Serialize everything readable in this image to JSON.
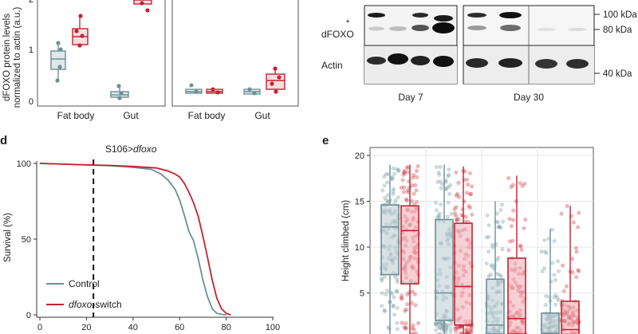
{
  "panel_a": {
    "ylabel_line1": "dFOXO protein levels",
    "ylabel_line2": "normalized to actin (a.u.)",
    "yticks": [
      "0",
      "1",
      "2"
    ],
    "left_groups": [
      "Fat body",
      "Gut"
    ],
    "right_groups": [
      "Fat body",
      "Gut"
    ]
  },
  "panel_blot": {
    "row_labels": [
      "*",
      "dFOXO",
      "Actin"
    ],
    "markers": [
      "100 kDa",
      "80 kDa",
      "40 kDa"
    ],
    "days": [
      "Day 7",
      "Day 30"
    ]
  },
  "panel_d": {
    "letter": "d",
    "title_prefix": "S106>",
    "title_gene": "dfoxo",
    "legend_control": "Control",
    "legend_switch_italic": "dfoxo",
    "legend_switch_suffix": "-switch"
  },
  "panel_e": {
    "letter": "e"
  },
  "colors": {
    "control": "#6b8f96",
    "switch": "#c8202f",
    "control_fill": "#b9cbcf",
    "switch_fill": "#eeaab0"
  },
  "chart_data": [
    {
      "type": "line",
      "xlabel": "",
      "ylabel": "Survival (%)",
      "xlim": [
        0,
        100
      ],
      "ylim": [
        0,
        100
      ],
      "xticks": [
        "0",
        "20",
        "40",
        "60",
        "80",
        "100"
      ],
      "yticks": [
        "0",
        "50",
        "100"
      ],
      "vline_x": 23,
      "series": [
        {
          "name": "Control",
          "x": [
            0,
            10,
            20,
            30,
            40,
            48,
            52,
            55,
            58,
            60,
            62,
            64,
            66,
            68,
            70,
            72,
            74,
            76,
            78,
            80
          ],
          "y": [
            100,
            99.5,
            99,
            98.5,
            97.5,
            96,
            93,
            89,
            83,
            76,
            66,
            55,
            49,
            37,
            23,
            12,
            4,
            1,
            0.3,
            0
          ]
        },
        {
          "name": "dfoxo-switch",
          "x": [
            0,
            10,
            20,
            30,
            40,
            50,
            55,
            58,
            60,
            62,
            64,
            66,
            68,
            70,
            72,
            74,
            76,
            78,
            80,
            82
          ],
          "y": [
            100,
            99.5,
            99,
            98.7,
            98,
            97,
            95,
            93,
            91,
            87,
            81,
            74,
            65,
            52,
            38,
            23,
            11,
            4,
            1,
            0
          ]
        }
      ]
    },
    {
      "type": "box",
      "ylabel": "Height climbed (cm)",
      "ylim": [
        0,
        20
      ],
      "yticks": [
        "5",
        "10",
        "15",
        "20"
      ],
      "series": [
        {
          "name": "Control",
          "groups": [
            {
              "q1": 7.0,
              "median": 12.2,
              "q3": 14.6,
              "whisker_high": 19.0
            },
            {
              "q1": 2.0,
              "median": 5.0,
              "q3": 13.0,
              "whisker_high": 19.0
            },
            {
              "q1": 0.5,
              "median": 1.5,
              "q3": 6.5,
              "whisker_high": 15.0
            },
            {
              "q1": 0.2,
              "median": 0.6,
              "q3": 2.8,
              "whisker_high": 12.0
            }
          ]
        },
        {
          "name": "dfoxo-switch",
          "groups": [
            {
              "q1": 6.0,
              "median": 11.8,
              "q3": 14.5,
              "whisker_high": 19.0
            },
            {
              "q1": 1.5,
              "median": 5.7,
              "q3": 12.6,
              "whisker_high": 18.8
            },
            {
              "q1": 0.5,
              "median": 2.2,
              "q3": 8.8,
              "whisker_high": 17.8
            },
            {
              "q1": 0.3,
              "median": 1.0,
              "q3": 4.1,
              "whisker_high": 14.5
            }
          ]
        }
      ]
    }
  ]
}
